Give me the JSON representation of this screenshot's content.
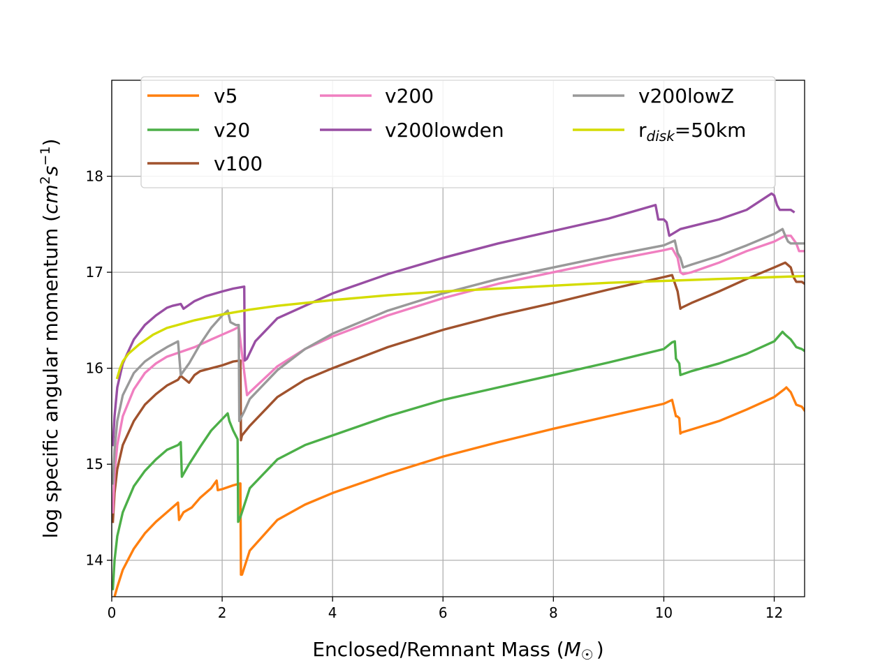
{
  "chart_data": {
    "type": "line",
    "title": "",
    "xlabel": "Enclosed/Remnant Mass (M☉)",
    "xlabel_parts": {
      "text": "Enclosed/Remnant Mass (",
      "symbol": "M",
      "subscript": "☉",
      "close": ")"
    },
    "ylabel": "log specific angular momentum (cm²s⁻¹)",
    "ylabel_parts": {
      "text": "log specific angular momentum (",
      "cm": "cm",
      "cm_exp": "2",
      "s": "s",
      "s_exp": "−1",
      "close": ")"
    },
    "xlim": [
      0,
      12.55
    ],
    "ylim": [
      13.62,
      19.0
    ],
    "grid": true,
    "legend_position": "top",
    "xticks": [
      {
        "value": 0,
        "label": "0"
      },
      {
        "value": 2,
        "label": "2"
      },
      {
        "value": 4,
        "label": "4"
      },
      {
        "value": 6,
        "label": "6"
      },
      {
        "value": 8,
        "label": "8"
      },
      {
        "value": 10,
        "label": "10"
      },
      {
        "value": 12,
        "label": "12"
      }
    ],
    "yticks": [
      {
        "value": 14,
        "label": "14"
      },
      {
        "value": 15,
        "label": "15"
      },
      {
        "value": 16,
        "label": "16"
      },
      {
        "value": 17,
        "label": "17"
      },
      {
        "value": 18,
        "label": "18"
      }
    ],
    "series": [
      {
        "name": "v5",
        "label": "v5",
        "color": "#ff7f0e",
        "x": [
          0.05,
          0.1,
          0.2,
          0.4,
          0.6,
          0.8,
          1.0,
          1.2,
          1.22,
          1.3,
          1.45,
          1.6,
          1.8,
          1.9,
          1.92,
          2.0,
          2.2,
          2.33,
          2.34,
          2.36,
          2.5,
          3.0,
          3.5,
          4.0,
          5.0,
          6.0,
          7.0,
          8.0,
          9.0,
          10.0,
          10.15,
          10.22,
          10.24,
          10.28,
          10.3,
          10.32,
          11.0,
          11.5,
          12.0,
          12.18,
          12.22,
          12.3,
          12.4,
          12.5,
          12.55
        ],
        "values": [
          13.62,
          13.72,
          13.9,
          14.12,
          14.28,
          14.4,
          14.5,
          14.6,
          14.42,
          14.5,
          14.55,
          14.65,
          14.75,
          14.83,
          14.73,
          14.74,
          14.78,
          14.8,
          13.85,
          13.85,
          14.1,
          14.42,
          14.58,
          14.7,
          14.9,
          15.08,
          15.23,
          15.37,
          15.5,
          15.63,
          15.67,
          15.5,
          15.5,
          15.48,
          15.32,
          15.33,
          15.45,
          15.57,
          15.7,
          15.78,
          15.8,
          15.75,
          15.62,
          15.6,
          15.56
        ]
      },
      {
        "name": "v20",
        "label": "v20",
        "color": "#4caf48",
        "x": [
          0.02,
          0.05,
          0.1,
          0.2,
          0.4,
          0.6,
          0.8,
          1.0,
          1.2,
          1.25,
          1.27,
          1.4,
          1.6,
          1.8,
          2.0,
          2.1,
          2.13,
          2.2,
          2.28,
          2.29,
          2.33,
          2.5,
          3.0,
          3.5,
          4.0,
          5.0,
          6.0,
          7.0,
          8.0,
          9.0,
          10.0,
          10.15,
          10.2,
          10.22,
          10.28,
          10.3,
          10.5,
          11.0,
          11.5,
          12.0,
          12.15,
          12.2,
          12.3,
          12.4,
          12.5,
          12.55
        ],
        "values": [
          13.7,
          14.0,
          14.25,
          14.5,
          14.77,
          14.93,
          15.05,
          15.15,
          15.2,
          15.23,
          14.87,
          15.0,
          15.18,
          15.35,
          15.47,
          15.53,
          15.45,
          15.35,
          15.26,
          14.4,
          14.45,
          14.75,
          15.05,
          15.2,
          15.3,
          15.5,
          15.67,
          15.8,
          15.93,
          16.06,
          16.2,
          16.27,
          16.28,
          16.1,
          16.05,
          15.93,
          15.97,
          16.05,
          16.15,
          16.28,
          16.38,
          16.35,
          16.3,
          16.22,
          16.2,
          16.18
        ]
      },
      {
        "name": "v100",
        "label": "v100",
        "color": "#a0522d",
        "x": [
          0.02,
          0.05,
          0.1,
          0.2,
          0.4,
          0.6,
          0.8,
          1.0,
          1.2,
          1.25,
          1.4,
          1.5,
          1.6,
          1.8,
          2.0,
          2.2,
          2.33,
          2.34,
          2.36,
          2.5,
          3.0,
          3.5,
          4.0,
          5.0,
          6.0,
          7.0,
          8.0,
          9.0,
          10.0,
          10.15,
          10.25,
          10.3,
          10.32,
          10.5,
          11.0,
          11.5,
          12.0,
          12.2,
          12.3,
          12.35,
          12.4,
          12.5,
          12.55
        ],
        "values": [
          14.4,
          14.7,
          14.95,
          15.2,
          15.45,
          15.62,
          15.73,
          15.82,
          15.88,
          15.92,
          15.85,
          15.93,
          15.97,
          16.0,
          16.03,
          16.07,
          16.08,
          15.25,
          15.3,
          15.4,
          15.7,
          15.88,
          16.0,
          16.22,
          16.4,
          16.55,
          16.68,
          16.82,
          16.95,
          16.97,
          16.8,
          16.62,
          16.63,
          16.68,
          16.8,
          16.93,
          17.05,
          17.1,
          17.05,
          16.95,
          16.9,
          16.9,
          16.88
        ]
      },
      {
        "name": "v200",
        "label": "v200",
        "color": "#f07fc0",
        "x": [
          0.02,
          0.05,
          0.1,
          0.2,
          0.4,
          0.6,
          0.8,
          1.0,
          1.2,
          1.3,
          1.5,
          1.8,
          2.0,
          2.2,
          2.3,
          2.45,
          2.5,
          3.0,
          3.5,
          4.0,
          5.0,
          6.0,
          7.0,
          8.0,
          9.0,
          10.0,
          10.15,
          10.25,
          10.3,
          10.35,
          10.5,
          11.0,
          11.5,
          12.0,
          12.2,
          12.3,
          12.4,
          12.45,
          12.5,
          12.55
        ],
        "values": [
          14.5,
          14.9,
          15.2,
          15.5,
          15.78,
          15.95,
          16.05,
          16.12,
          16.16,
          16.18,
          16.22,
          16.3,
          16.35,
          16.4,
          16.43,
          15.72,
          15.75,
          16.02,
          16.2,
          16.33,
          16.55,
          16.73,
          16.88,
          17.0,
          17.12,
          17.23,
          17.25,
          17.15,
          17.0,
          16.98,
          17.0,
          17.1,
          17.22,
          17.32,
          17.38,
          17.38,
          17.3,
          17.22,
          17.22,
          17.22
        ]
      },
      {
        "name": "v200lowden",
        "label": "v200lowden",
        "color": "#984ea3",
        "x": [
          0.02,
          0.05,
          0.1,
          0.2,
          0.4,
          0.6,
          0.8,
          1.0,
          1.1,
          1.25,
          1.3,
          1.5,
          1.7,
          2.0,
          2.2,
          2.4,
          2.41,
          2.45,
          2.6,
          3.0,
          3.5,
          4.0,
          5.0,
          6.0,
          7.0,
          8.0,
          9.0,
          9.85,
          9.9,
          10.0,
          10.05,
          10.1,
          10.3,
          11.0,
          11.5,
          11.95,
          12.0,
          12.05,
          12.1,
          12.3,
          12.35
        ],
        "values": [
          15.2,
          15.5,
          15.8,
          16.05,
          16.3,
          16.45,
          16.55,
          16.63,
          16.65,
          16.67,
          16.62,
          16.7,
          16.75,
          16.8,
          16.83,
          16.85,
          16.08,
          16.1,
          16.28,
          16.52,
          16.65,
          16.78,
          16.98,
          17.15,
          17.3,
          17.43,
          17.56,
          17.7,
          17.55,
          17.55,
          17.52,
          17.38,
          17.45,
          17.55,
          17.65,
          17.82,
          17.8,
          17.7,
          17.65,
          17.65,
          17.63
        ]
      },
      {
        "name": "v200lowZ",
        "label": "v200lowZ",
        "color": "#999999",
        "x": [
          0.02,
          0.05,
          0.1,
          0.2,
          0.4,
          0.6,
          0.8,
          1.0,
          1.2,
          1.25,
          1.4,
          1.6,
          1.8,
          2.0,
          2.1,
          2.15,
          2.25,
          2.3,
          2.31,
          2.4,
          2.5,
          3.0,
          3.5,
          4.0,
          5.0,
          6.0,
          7.0,
          8.0,
          9.0,
          10.0,
          10.2,
          10.25,
          10.3,
          10.35,
          10.5,
          11.0,
          11.5,
          12.0,
          12.15,
          12.2,
          12.25,
          12.3,
          12.4,
          12.5,
          12.55
        ],
        "values": [
          14.8,
          15.15,
          15.45,
          15.72,
          15.95,
          16.07,
          16.15,
          16.22,
          16.28,
          15.93,
          16.05,
          16.25,
          16.42,
          16.55,
          16.6,
          16.48,
          16.45,
          16.45,
          15.45,
          15.55,
          15.68,
          15.98,
          16.2,
          16.36,
          16.6,
          16.78,
          16.93,
          17.05,
          17.17,
          17.28,
          17.33,
          17.2,
          17.15,
          17.05,
          17.08,
          17.17,
          17.28,
          17.4,
          17.45,
          17.38,
          17.32,
          17.3,
          17.3,
          17.3,
          17.3
        ]
      },
      {
        "name": "r_disk=50km",
        "label": "r",
        "label_sub": "disk",
        "label_rest": "=50km",
        "color": "#d4dc00",
        "x": [
          0.1,
          0.15,
          0.2,
          0.3,
          0.5,
          0.75,
          1.0,
          1.5,
          2.0,
          2.5,
          3.0,
          4.0,
          5.0,
          6.0,
          7.0,
          8.0,
          9.0,
          10.0,
          11.0,
          12.0,
          12.55
        ],
        "values": [
          15.9,
          16.0,
          16.07,
          16.15,
          16.25,
          16.35,
          16.42,
          16.5,
          16.56,
          16.61,
          16.65,
          16.71,
          16.76,
          16.8,
          16.83,
          16.86,
          16.89,
          16.91,
          16.93,
          16.95,
          16.96
        ]
      }
    ]
  }
}
